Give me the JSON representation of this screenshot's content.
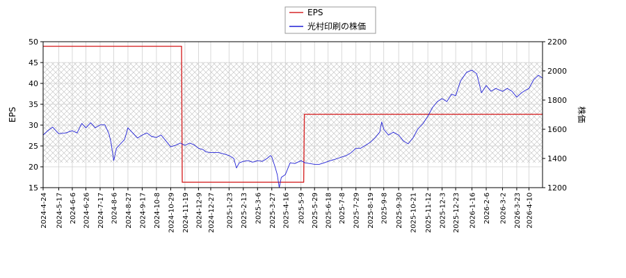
{
  "chart_data": {
    "type": "line",
    "legend": {
      "placement": "top-center",
      "entries": [
        {
          "label": "EPS",
          "color": "#d62728"
        },
        {
          "label": "光村印刷の株価",
          "color": "#1f1fd6"
        }
      ]
    },
    "left_axis": {
      "label": "EPS",
      "ylim": [
        15,
        50
      ],
      "ticks": [
        "15",
        "20",
        "25",
        "30",
        "35",
        "40",
        "45",
        "50"
      ]
    },
    "right_axis": {
      "label": "株価",
      "ylim": [
        1200,
        2200
      ],
      "ticks": [
        "1200",
        "1400",
        "1600",
        "1800",
        "2000",
        "2200"
      ]
    },
    "x_axis": {
      "range": [
        "2024-04-24",
        "2026-04-30"
      ],
      "ticks": [
        "2024-4-24",
        "2024-5-17",
        "2024-6-6",
        "2024-6-26",
        "2024-7-17",
        "2024-8-6",
        "2024-8-27",
        "2024-9-17",
        "2024-10-8",
        "2024-10-29",
        "2024-11-19",
        "2024-12-9",
        "2024-12-27",
        "2025-1-23",
        "2025-2-13",
        "2025-3-6",
        "2025-3-27",
        "2025-4-16",
        "2025-5-9",
        "2025-5-29",
        "2025-6-18",
        "2025-7-8",
        "2025-7-29",
        "2025-8-19",
        "2025-9-8",
        "2025-9-30",
        "2025-10-21",
        "2025-11-12",
        "2025-12-3",
        "2025-12-23",
        "2026-1-16",
        "2026-2-6",
        "2026-3-2",
        "2026-3-23",
        "2026-4-10"
      ]
    },
    "grid": true,
    "shaded_band": {
      "eps_from": 21,
      "eps_to": 45,
      "pattern": "crosshatch"
    },
    "series": [
      {
        "name": "EPS",
        "axis": "left",
        "color": "#d62728",
        "step": true,
        "points": [
          {
            "x": "2024-04-24",
            "y": 48.9
          },
          {
            "x": "2024-11-14",
            "y": 48.9
          },
          {
            "x": "2024-11-15",
            "y": 16.3
          },
          {
            "x": "2025-05-13",
            "y": 16.3
          },
          {
            "x": "2025-05-14",
            "y": 32.6
          },
          {
            "x": "2026-04-30",
            "y": 32.6
          }
        ]
      },
      {
        "name": "光村印刷の株価",
        "axis": "right",
        "color": "#1f1fd6",
        "points": [
          {
            "x": "2024-04-24",
            "y": 1560
          },
          {
            "x": "2024-05-01",
            "y": 1590
          },
          {
            "x": "2024-05-08",
            "y": 1615
          },
          {
            "x": "2024-05-17",
            "y": 1570
          },
          {
            "x": "2024-05-27",
            "y": 1575
          },
          {
            "x": "2024-06-06",
            "y": 1590
          },
          {
            "x": "2024-06-13",
            "y": 1575
          },
          {
            "x": "2024-06-20",
            "y": 1640
          },
          {
            "x": "2024-06-26",
            "y": 1610
          },
          {
            "x": "2024-07-03",
            "y": 1645
          },
          {
            "x": "2024-07-10",
            "y": 1610
          },
          {
            "x": "2024-07-17",
            "y": 1630
          },
          {
            "x": "2024-07-24",
            "y": 1630
          },
          {
            "x": "2024-07-30",
            "y": 1570
          },
          {
            "x": "2024-08-02",
            "y": 1510
          },
          {
            "x": "2024-08-06",
            "y": 1385
          },
          {
            "x": "2024-08-10",
            "y": 1470
          },
          {
            "x": "2024-08-16",
            "y": 1500
          },
          {
            "x": "2024-08-22",
            "y": 1530
          },
          {
            "x": "2024-08-27",
            "y": 1610
          },
          {
            "x": "2024-09-03",
            "y": 1575
          },
          {
            "x": "2024-09-10",
            "y": 1540
          },
          {
            "x": "2024-09-17",
            "y": 1560
          },
          {
            "x": "2024-09-24",
            "y": 1575
          },
          {
            "x": "2024-10-01",
            "y": 1550
          },
          {
            "x": "2024-10-08",
            "y": 1545
          },
          {
            "x": "2024-10-15",
            "y": 1560
          },
          {
            "x": "2024-10-22",
            "y": 1520
          },
          {
            "x": "2024-10-29",
            "y": 1480
          },
          {
            "x": "2024-11-05",
            "y": 1490
          },
          {
            "x": "2024-11-12",
            "y": 1505
          },
          {
            "x": "2024-11-19",
            "y": 1490
          },
          {
            "x": "2024-11-26",
            "y": 1505
          },
          {
            "x": "2024-12-02",
            "y": 1495
          },
          {
            "x": "2024-12-09",
            "y": 1470
          },
          {
            "x": "2024-12-16",
            "y": 1460
          },
          {
            "x": "2024-12-20",
            "y": 1445
          },
          {
            "x": "2024-12-27",
            "y": 1440
          },
          {
            "x": "2025-01-08",
            "y": 1440
          },
          {
            "x": "2025-01-16",
            "y": 1430
          },
          {
            "x": "2025-01-23",
            "y": 1420
          },
          {
            "x": "2025-01-30",
            "y": 1400
          },
          {
            "x": "2025-02-03",
            "y": 1335
          },
          {
            "x": "2025-02-07",
            "y": 1370
          },
          {
            "x": "2025-02-13",
            "y": 1380
          },
          {
            "x": "2025-02-20",
            "y": 1385
          },
          {
            "x": "2025-02-27",
            "y": 1375
          },
          {
            "x": "2025-03-06",
            "y": 1385
          },
          {
            "x": "2025-03-13",
            "y": 1380
          },
          {
            "x": "2025-03-20",
            "y": 1400
          },
          {
            "x": "2025-03-25",
            "y": 1420
          },
          {
            "x": "2025-03-27",
            "y": 1410
          },
          {
            "x": "2025-04-01",
            "y": 1340
          },
          {
            "x": "2025-04-04",
            "y": 1290
          },
          {
            "x": "2025-04-07",
            "y": 1200
          },
          {
            "x": "2025-04-10",
            "y": 1270
          },
          {
            "x": "2025-04-16",
            "y": 1290
          },
          {
            "x": "2025-04-23",
            "y": 1370
          },
          {
            "x": "2025-04-30",
            "y": 1365
          },
          {
            "x": "2025-05-09",
            "y": 1385
          },
          {
            "x": "2025-05-15",
            "y": 1370
          },
          {
            "x": "2025-05-22",
            "y": 1365
          },
          {
            "x": "2025-05-29",
            "y": 1360
          },
          {
            "x": "2025-06-05",
            "y": 1360
          },
          {
            "x": "2025-06-12",
            "y": 1370
          },
          {
            "x": "2025-06-18",
            "y": 1380
          },
          {
            "x": "2025-06-25",
            "y": 1390
          },
          {
            "x": "2025-07-02",
            "y": 1400
          },
          {
            "x": "2025-07-08",
            "y": 1410
          },
          {
            "x": "2025-07-15",
            "y": 1420
          },
          {
            "x": "2025-07-22",
            "y": 1440
          },
          {
            "x": "2025-07-29",
            "y": 1470
          },
          {
            "x": "2025-08-05",
            "y": 1470
          },
          {
            "x": "2025-08-12",
            "y": 1490
          },
          {
            "x": "2025-08-19",
            "y": 1510
          },
          {
            "x": "2025-08-26",
            "y": 1540
          },
          {
            "x": "2025-09-02",
            "y": 1580
          },
          {
            "x": "2025-09-05",
            "y": 1650
          },
          {
            "x": "2025-09-08",
            "y": 1600
          },
          {
            "x": "2025-09-15",
            "y": 1560
          },
          {
            "x": "2025-09-22",
            "y": 1580
          },
          {
            "x": "2025-09-30",
            "y": 1560
          },
          {
            "x": "2025-10-07",
            "y": 1520
          },
          {
            "x": "2025-10-14",
            "y": 1500
          },
          {
            "x": "2025-10-21",
            "y": 1540
          },
          {
            "x": "2025-10-28",
            "y": 1600
          },
          {
            "x": "2025-11-05",
            "y": 1640
          },
          {
            "x": "2025-11-12",
            "y": 1690
          },
          {
            "x": "2025-11-19",
            "y": 1750
          },
          {
            "x": "2025-11-26",
            "y": 1790
          },
          {
            "x": "2025-12-03",
            "y": 1810
          },
          {
            "x": "2025-12-10",
            "y": 1790
          },
          {
            "x": "2025-12-17",
            "y": 1840
          },
          {
            "x": "2025-12-23",
            "y": 1830
          },
          {
            "x": "2025-12-30",
            "y": 1930
          },
          {
            "x": "2026-01-08",
            "y": 1990
          },
          {
            "x": "2026-01-16",
            "y": 2005
          },
          {
            "x": "2026-01-23",
            "y": 1980
          },
          {
            "x": "2026-01-30",
            "y": 1850
          },
          {
            "x": "2026-02-06",
            "y": 1900
          },
          {
            "x": "2026-02-13",
            "y": 1860
          },
          {
            "x": "2026-02-20",
            "y": 1880
          },
          {
            "x": "2026-03-02",
            "y": 1860
          },
          {
            "x": "2026-03-09",
            "y": 1880
          },
          {
            "x": "2026-03-16",
            "y": 1860
          },
          {
            "x": "2026-03-23",
            "y": 1820
          },
          {
            "x": "2026-03-30",
            "y": 1850
          },
          {
            "x": "2026-04-06",
            "y": 1870
          },
          {
            "x": "2026-04-10",
            "y": 1880
          },
          {
            "x": "2026-04-17",
            "y": 1940
          },
          {
            "x": "2026-04-24",
            "y": 1970
          },
          {
            "x": "2026-04-30",
            "y": 1950
          }
        ]
      }
    ]
  }
}
